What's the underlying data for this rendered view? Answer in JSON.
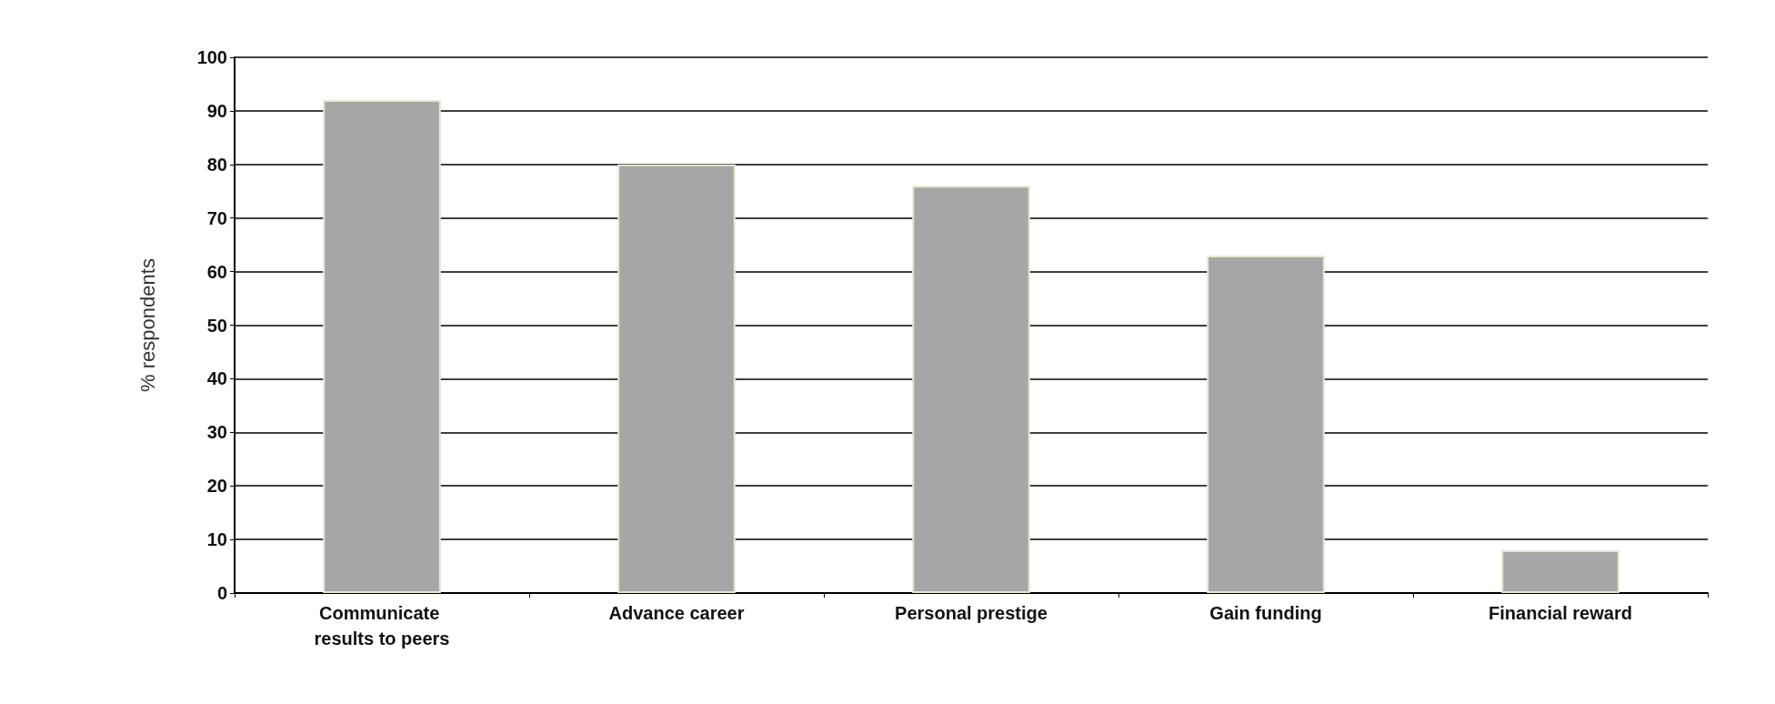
{
  "chart_data": {
    "type": "bar",
    "ylabel": "% respondents",
    "categories": [
      "Communicate results to peers",
      "Advance career",
      "Personal prestige",
      "Gain funding",
      "Financial reward"
    ],
    "values": [
      92,
      80,
      76,
      63,
      8
    ],
    "color": "#a6a6a6",
    "ylim": [
      0,
      100
    ],
    "yticks": [
      0,
      10,
      20,
      30,
      40,
      50,
      60,
      70,
      80,
      90,
      100
    ],
    "grid": "y"
  }
}
